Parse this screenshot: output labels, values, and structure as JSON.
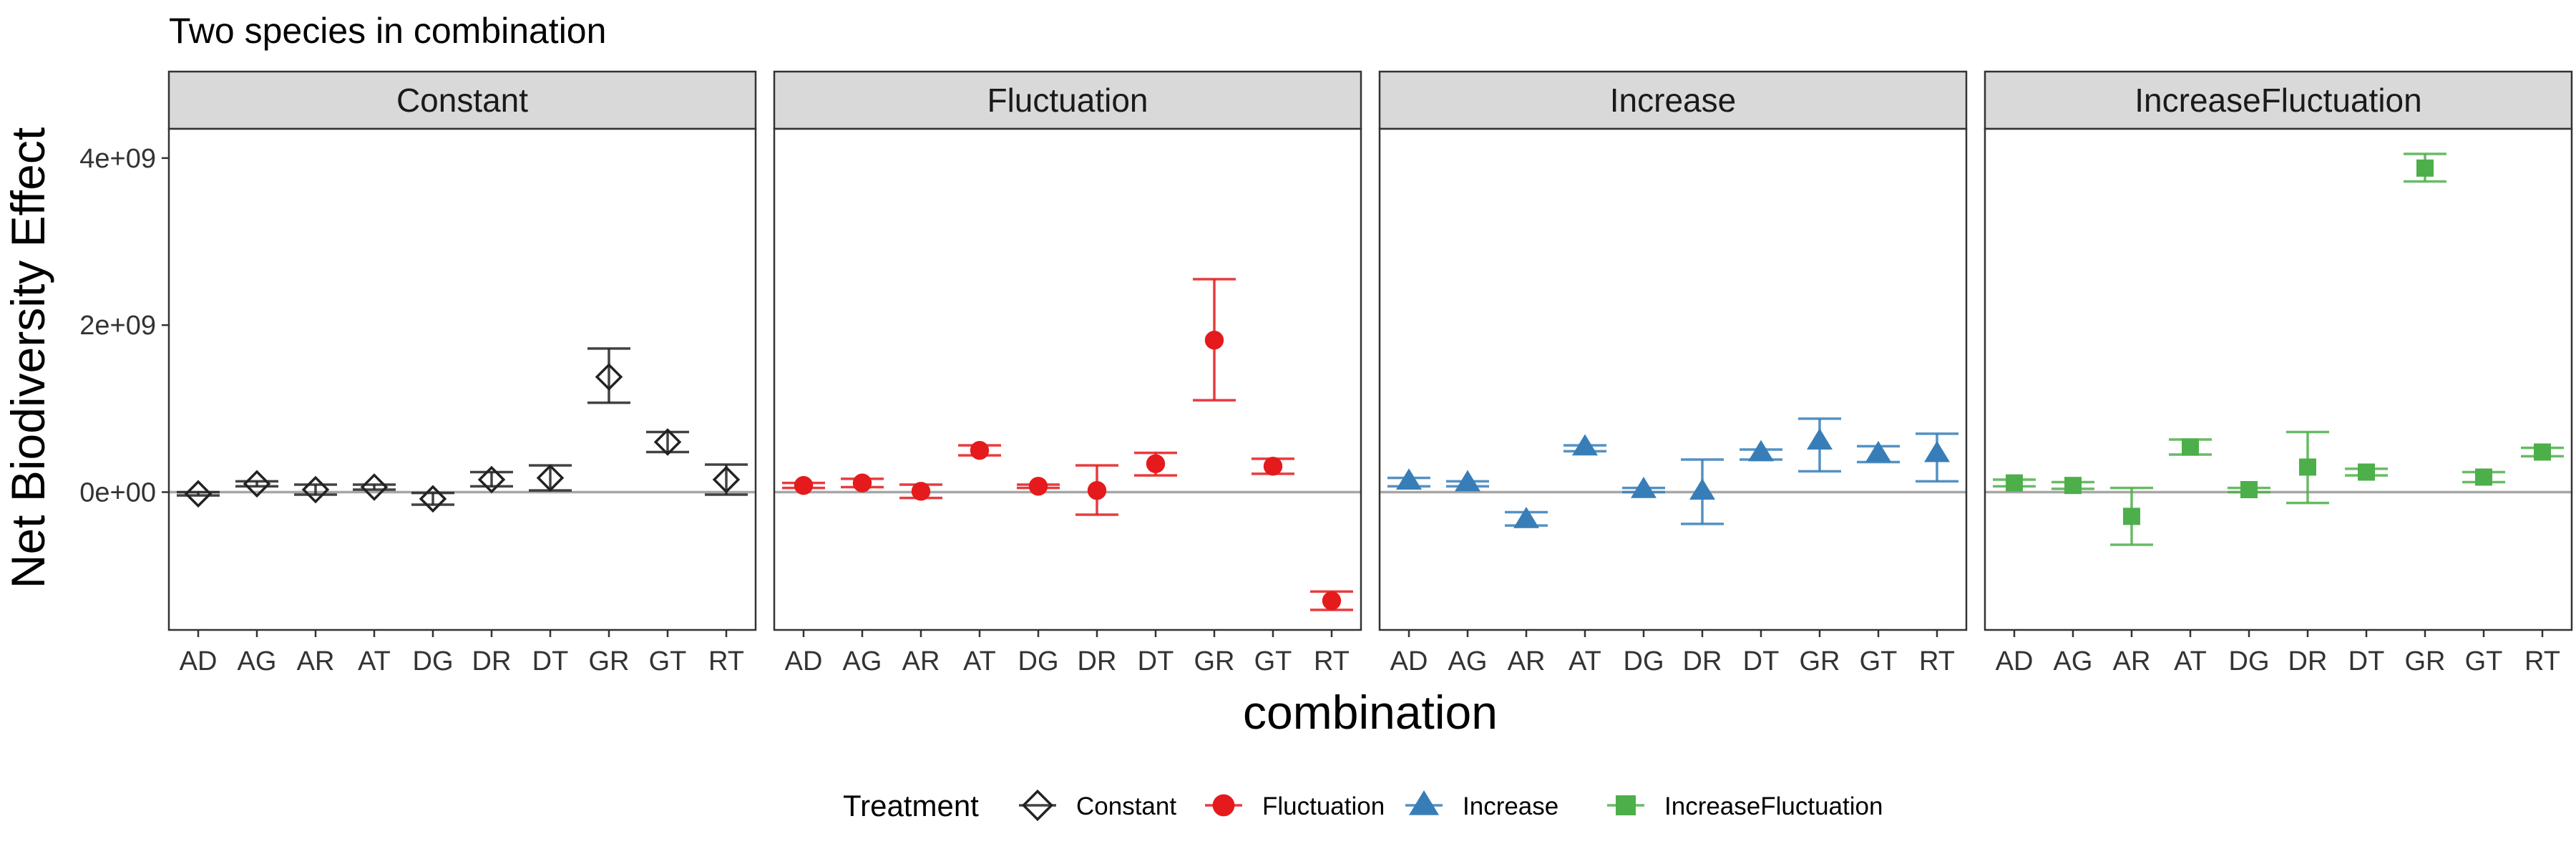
{
  "chart_data": {
    "type": "scatter",
    "title": "Two species in combination",
    "xlabel": "combination",
    "ylabel": "Net Biodiversity Effect",
    "categories": [
      "AD",
      "AG",
      "AR",
      "AT",
      "DG",
      "DR",
      "DT",
      "GR",
      "GT",
      "RT"
    ],
    "ylim": [
      -1650000000,
      4350000000
    ],
    "y_ticks": [
      0,
      2000000000,
      4000000000
    ],
    "y_tick_labels": [
      "0e+00",
      "2e+09",
      "4e+09"
    ],
    "reference_line": 0,
    "legend": {
      "title": "Treatment",
      "position": "bottom",
      "entries": [
        "Constant",
        "Fluctuation",
        "Increase",
        "IncreaseFluctuation"
      ]
    },
    "panels": [
      {
        "name": "Constant",
        "color": "#222222",
        "marker": "diamond-open",
        "values": [
          -20000000,
          100000000,
          30000000,
          60000000,
          -80000000,
          150000000,
          170000000,
          1380000000,
          600000000,
          150000000
        ],
        "err_low": [
          -40000000,
          70000000,
          -30000000,
          30000000,
          -150000000,
          70000000,
          20000000,
          1070000000,
          480000000,
          -30000000
        ],
        "err_high": [
          0,
          130000000,
          90000000,
          90000000,
          -10000000,
          240000000,
          320000000,
          1720000000,
          720000000,
          330000000
        ]
      },
      {
        "name": "Fluctuation",
        "color": "#E41A1C",
        "marker": "circle",
        "values": [
          80000000,
          110000000,
          10000000,
          500000000,
          70000000,
          20000000,
          340000000,
          1820000000,
          310000000,
          -1300000000
        ],
        "err_low": [
          50000000,
          60000000,
          -70000000,
          440000000,
          50000000,
          -270000000,
          200000000,
          1100000000,
          220000000,
          -1410000000
        ],
        "err_high": [
          110000000,
          160000000,
          90000000,
          560000000,
          90000000,
          320000000,
          470000000,
          2550000000,
          400000000,
          -1190000000
        ]
      },
      {
        "name": "Increase",
        "color": "#377EB8",
        "marker": "triangle",
        "values": [
          130000000,
          110000000,
          -330000000,
          540000000,
          30000000,
          10000000,
          470000000,
          610000000,
          460000000,
          460000000
        ],
        "err_low": [
          70000000,
          70000000,
          -400000000,
          490000000,
          0,
          -380000000,
          390000000,
          250000000,
          360000000,
          130000000
        ],
        "err_high": [
          170000000,
          130000000,
          -240000000,
          560000000,
          50000000,
          390000000,
          510000000,
          880000000,
          550000000,
          700000000
        ]
      },
      {
        "name": "IncreaseFluctuation",
        "color": "#4DAF4A",
        "marker": "square",
        "values": [
          110000000,
          80000000,
          -290000000,
          540000000,
          30000000,
          300000000,
          240000000,
          3880000000,
          180000000,
          480000000
        ],
        "err_low": [
          70000000,
          40000000,
          -630000000,
          450000000,
          0,
          -130000000,
          200000000,
          3720000000,
          120000000,
          430000000
        ],
        "err_high": [
          150000000,
          120000000,
          50000000,
          630000000,
          50000000,
          720000000,
          280000000,
          4050000000,
          240000000,
          530000000
        ]
      }
    ]
  }
}
